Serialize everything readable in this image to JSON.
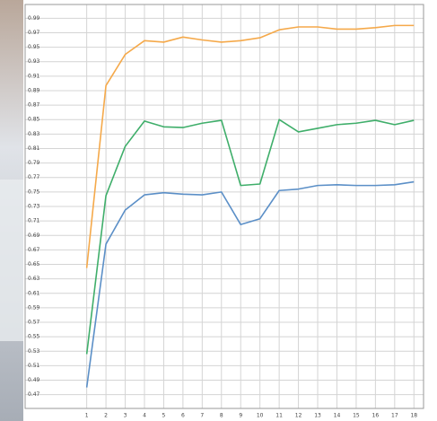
{
  "chart_data": {
    "type": "line",
    "x": [
      1,
      2,
      3,
      4,
      5,
      6,
      7,
      8,
      9,
      10,
      11,
      12,
      13,
      14,
      15,
      16,
      17,
      18
    ],
    "xlim": [
      -2.2,
      18.5
    ],
    "xticks": [
      1,
      2,
      3,
      4,
      5,
      6,
      7,
      8,
      9,
      10,
      11,
      12,
      13,
      14,
      15,
      16,
      17,
      18
    ],
    "ylim": [
      0.451,
      1.009
    ],
    "yticks": [
      0.47,
      0.49,
      0.51,
      0.53,
      0.55,
      0.57,
      0.59,
      0.61,
      0.63,
      0.65,
      0.67,
      0.69,
      0.71,
      0.73,
      0.75,
      0.77,
      0.79,
      0.81,
      0.83,
      0.85,
      0.87,
      0.89,
      0.91,
      0.93,
      0.95,
      0.97,
      0.99
    ],
    "grid": true,
    "series": [
      {
        "color": "#f5a94a",
        "values": [
          0.645,
          0.897,
          0.94,
          0.959,
          0.957,
          0.964,
          0.96,
          0.957,
          0.959,
          0.963,
          0.974,
          0.978,
          0.978,
          0.975,
          0.975,
          0.977,
          0.98,
          0.98
        ]
      },
      {
        "color": "#3fae6a",
        "values": [
          0.526,
          0.745,
          0.813,
          0.848,
          0.84,
          0.839,
          0.845,
          0.849,
          0.759,
          0.761,
          0.85,
          0.833,
          0.838,
          0.843,
          0.845,
          0.849,
          0.843,
          0.849
        ]
      },
      {
        "color": "#5b8fc7",
        "values": [
          0.48,
          0.678,
          0.725,
          0.746,
          0.749,
          0.747,
          0.746,
          0.75,
          0.705,
          0.713,
          0.752,
          0.754,
          0.759,
          0.76,
          0.759,
          0.759,
          0.76,
          0.764
        ]
      }
    ]
  }
}
